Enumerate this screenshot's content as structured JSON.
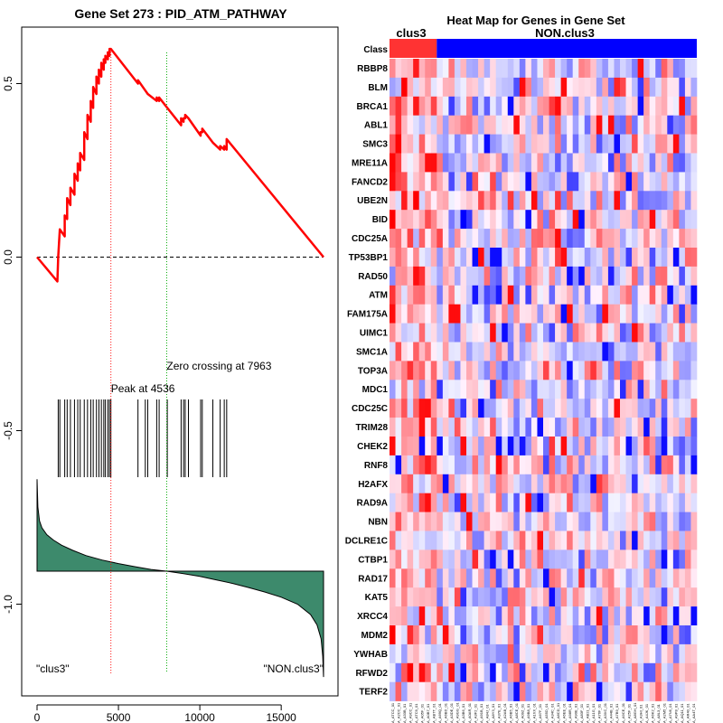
{
  "chart_data": [
    {
      "type": "line",
      "title": "Gene Set  273 : PID_ATM_PATHWAY",
      "xlim": [
        0,
        17600
      ],
      "ylim": [
        -1.25,
        0.67
      ],
      "x_ticks": [
        {
          "value": 0,
          "label": "0"
        },
        {
          "value": 5000,
          "label": "5000"
        },
        {
          "value": 10000,
          "label": "10000"
        },
        {
          "value": 15000,
          "label": "15000"
        }
      ],
      "y_ticks": [
        {
          "value": 0.5,
          "label": "0.5"
        },
        {
          "value": 0.0,
          "label": "0.0"
        },
        {
          "value": -0.5,
          "label": "-0.5"
        },
        {
          "value": -1.0,
          "label": "-1.0"
        }
      ],
      "peak": {
        "x": 4536,
        "label": "Peak at 4536"
      },
      "zero_crossing": {
        "x": 7963,
        "label": "Zero crossing at 7963"
      },
      "left_label": "\"clus3\"",
      "right_label": "\"NON.clus3\"",
      "hits": [
        1300,
        1400,
        1700,
        1850,
        2050,
        2300,
        2500,
        2650,
        2900,
        3100,
        3300,
        3450,
        3650,
        3800,
        3950,
        4100,
        4200,
        4350,
        4450,
        4536,
        6200,
        6650,
        6800,
        7350,
        7500,
        8000,
        8850,
        9000,
        9100,
        9300,
        10050,
        10150,
        10800,
        11250,
        11500,
        11650
      ],
      "series": [
        {
          "name": "running enrichment score",
          "x": [
            0,
            1250,
            1300,
            1400,
            1400,
            1700,
            1700,
            1850,
            1850,
            2050,
            2050,
            2300,
            2300,
            2500,
            2500,
            2650,
            2650,
            2900,
            2900,
            3100,
            3100,
            3300,
            3300,
            3450,
            3450,
            3650,
            3650,
            3800,
            3800,
            3950,
            3950,
            4100,
            4100,
            4200,
            4200,
            4350,
            4350,
            4450,
            4450,
            4536,
            6200,
            6200,
            6650,
            6650,
            6800,
            6800,
            7350,
            7350,
            7500,
            7500,
            8000,
            8850,
            8850,
            9000,
            9000,
            9100,
            9100,
            9300,
            9300,
            10050,
            10050,
            10150,
            10150,
            10800,
            10800,
            11250,
            11250,
            11500,
            11500,
            11650,
            11650,
            17600
          ],
          "y": [
            0.0,
            -0.07,
            0.0,
            0.08,
            0.08,
            0.06,
            0.12,
            0.11,
            0.17,
            0.15,
            0.2,
            0.18,
            0.24,
            0.22,
            0.27,
            0.25,
            0.3,
            0.28,
            0.36,
            0.34,
            0.41,
            0.39,
            0.45,
            0.43,
            0.49,
            0.47,
            0.52,
            0.5,
            0.54,
            0.52,
            0.56,
            0.54,
            0.57,
            0.56,
            0.58,
            0.57,
            0.59,
            0.58,
            0.6,
            0.6,
            0.5,
            0.51,
            0.48,
            0.48,
            0.47,
            0.47,
            0.45,
            0.46,
            0.45,
            0.46,
            0.43,
            0.38,
            0.4,
            0.39,
            0.4,
            0.4,
            0.41,
            0.4,
            0.4,
            0.35,
            0.36,
            0.36,
            0.37,
            0.33,
            0.33,
            0.31,
            0.32,
            0.31,
            0.32,
            0.31,
            0.34,
            0.0
          ]
        }
      ],
      "ranked_metric": {
        "name": "ranked list metric",
        "baseline": -0.905,
        "x": [
          0,
          50,
          150,
          300,
          600,
          1000,
          1500,
          2200,
          3000,
          4000,
          5000,
          6000,
          7000,
          7963,
          9000,
          10000,
          11000,
          12000,
          13000,
          14000,
          15000,
          16000,
          16800,
          17200,
          17450,
          17550,
          17600
        ],
        "y": [
          -0.64,
          -0.72,
          -0.76,
          -0.78,
          -0.8,
          -0.815,
          -0.83,
          -0.845,
          -0.86,
          -0.873,
          -0.883,
          -0.892,
          -0.9,
          -0.905,
          -0.912,
          -0.92,
          -0.93,
          -0.94,
          -0.952,
          -0.965,
          -0.98,
          -1.0,
          -1.03,
          -1.06,
          -1.1,
          -1.15,
          -1.21
        ]
      }
    },
    {
      "type": "heatmap",
      "title": "Heat Map for Genes in Gene Set",
      "class_row_label": "Class",
      "groups": [
        {
          "name": "clus3",
          "color": "#ff3333",
          "count": 8
        },
        {
          "name": "NON.clus3",
          "color": "#0000ff",
          "count": 44
        }
      ],
      "genes": [
        "RBBP8",
        "BLM",
        "BRCA1",
        "ABL1",
        "SMC3",
        "MRE11A",
        "FANCD2",
        "UBE2N",
        "BID",
        "CDC25A",
        "TP53BP1",
        "RAD50",
        "ATM",
        "FAM175A",
        "UIMC1",
        "SMC1A",
        "TOP3A",
        "MDC1",
        "CDC25C",
        "TRIM28",
        "CHEK2",
        "RNF8",
        "H2AFX",
        "RAD9A",
        "NBN",
        "DCLRE1C",
        "CTBP1",
        "RAD17",
        "KAT5",
        "XRCC4",
        "MDM2",
        "YWHAB",
        "RFWD2",
        "TERF2"
      ],
      "samples": [
        "A_ATCC_01",
        "A_A2CC_01",
        "A_A33B_01",
        "A_A9CC_01",
        "A_ATC9_01",
        "A_A05F_01",
        "A_A0B7_01",
        "A_AB7T_01",
        "A_A69Q_01",
        "A_A6BD_01",
        "A_A3DE_01",
        "A_A9GG_01",
        "A_A3B6_01",
        "A_A0AR_01",
        "A_A3F2_01",
        "A_A91B_01",
        "A_A84J_01",
        "A_A8Y3_01",
        "A_A37E_01",
        "A_A2AB_01",
        "A_A6B5_01",
        "A_A8CE_01",
        "A_A09Z_01",
        "A_A9B8_01",
        "A_A1XX_01",
        "A_A67F_01",
        "A_A55D_01",
        "A_A34C_01",
        "A_A8CD_01",
        "A_A6EE_01",
        "A_A98R_01",
        "A_A90E_01",
        "A_A83F_01",
        "A_AB21_01",
        "A_A11G_01",
        "A_A76F_01",
        "A_A3XC_01",
        "A_A44B_01",
        "A_A7B9_01",
        "A_A9CE_01",
        "A_A25F_01",
        "A_A8GH_01",
        "A_A3HI_01",
        "A_A4JK_01",
        "A_A6K2_01",
        "A_A8L3_01",
        "A_A2M5_01",
        "A_A7N6_01",
        "A_A9P8_01",
        "A_AQ11_01",
        "A_AR40_01",
        "A_AA4T_01"
      ],
      "color_scale": {
        "low": "#0000ff",
        "mid": "#f2f2ff",
        "high": "#ff0000"
      }
    }
  ]
}
